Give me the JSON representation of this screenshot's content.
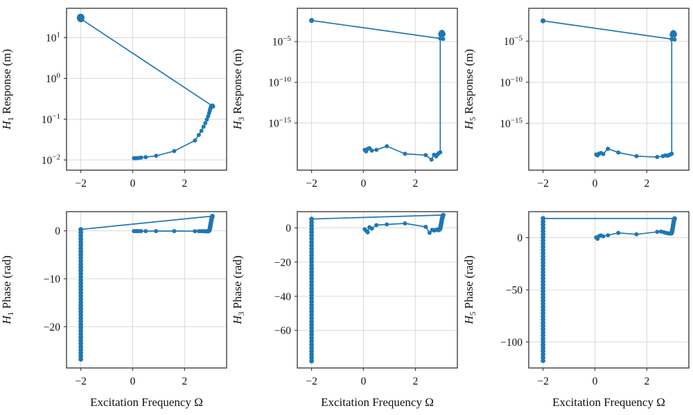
{
  "figure": {
    "background": "#ffffff",
    "line_color": "#1f77b4",
    "grid_color": "#dcdcdc",
    "spine_color": "#3f3f3f",
    "text_color": "#111111",
    "xlabel": "Excitation Frequency Ω"
  },
  "chart_data": [
    {
      "id": "h1_response",
      "type": "line",
      "row": 0,
      "col": 0,
      "ylabel": {
        "var": "H",
        "sub": "1",
        "rest": " Response (m)"
      },
      "yscale": "log",
      "ylim": [
        -2.25,
        1.72
      ],
      "yticks": [
        1,
        0,
        -1,
        -2
      ],
      "xlim": [
        -2.55,
        3.62
      ],
      "xticks": [
        -2,
        0,
        2
      ],
      "grid": true,
      "legend": "none",
      "points": [
        [
          0.05,
          0.011
        ],
        [
          0.1,
          0.011
        ],
        [
          0.16,
          0.0111
        ],
        [
          0.23,
          0.0112
        ],
        [
          0.32,
          0.0114
        ],
        [
          0.5,
          0.0117
        ],
        [
          0.9,
          0.0126
        ],
        [
          1.6,
          0.0165
        ],
        [
          2.4,
          0.03
        ],
        [
          2.55,
          0.041
        ],
        [
          2.65,
          0.052
        ],
        [
          2.73,
          0.065
        ],
        [
          2.8,
          0.08
        ],
        [
          2.86,
          0.098
        ],
        [
          2.91,
          0.118
        ],
        [
          2.945,
          0.14
        ],
        [
          2.97,
          0.16
        ],
        [
          2.99,
          0.178
        ],
        [
          3.005,
          0.192
        ],
        [
          3.02,
          0.202
        ],
        [
          3.04,
          0.21
        ],
        [
          3.06,
          0.215
        ],
        [
          3.08,
          0.216
        ],
        [
          3.1,
          0.205
        ],
        [
          -2.0,
          29.0,
          5
        ],
        [
          -2.02,
          30.5,
          5
        ],
        [
          -1.99,
          31.5,
          5
        ],
        [
          -2.01,
          32.0,
          5
        ],
        [
          -2.0,
          30.8,
          5
        ]
      ]
    },
    {
      "id": "h3_response",
      "type": "line",
      "row": 0,
      "col": 1,
      "ylabel": {
        "var": "H",
        "sub": "3",
        "rest": " Response (m)"
      },
      "yscale": "log",
      "ylim": [
        -20.8,
        -0.9
      ],
      "yticks": [
        -5,
        -10,
        -15
      ],
      "xlim": [
        -2.55,
        3.62
      ],
      "xticks": [
        -2,
        0,
        2
      ],
      "grid": true,
      "legend": "none",
      "points": [
        [
          0.05,
          5e-19
        ],
        [
          0.1,
          3.2e-19
        ],
        [
          0.16,
          6.3e-19
        ],
        [
          0.23,
          8e-19
        ],
        [
          0.32,
          4e-19
        ],
        [
          0.5,
          5e-19
        ],
        [
          0.9,
          1.4e-18
        ],
        [
          1.6,
          1.6e-19
        ],
        [
          2.4,
          1.1e-19
        ],
        [
          2.62,
          3.2e-20
        ],
        [
          2.72,
          1.26e-19
        ],
        [
          2.8,
          8e-20
        ],
        [
          2.86,
          1.4e-19
        ],
        [
          2.91,
          2e-19
        ],
        [
          2.96,
          2.5e-19
        ],
        [
          2.96,
          2.4e-05
        ],
        [
          2.985,
          8e-05,
          4
        ],
        [
          3.005,
          0.00011,
          4
        ],
        [
          3.025,
          0.00013,
          4
        ],
        [
          3.045,
          0.000105,
          4
        ],
        [
          3.01,
          0.00012,
          4
        ],
        [
          3.06,
          8.5e-05,
          4
        ],
        [
          3.07,
          2.2e-05
        ],
        [
          -2.0,
          0.004,
          3.6
        ]
      ]
    },
    {
      "id": "h5_response",
      "type": "line",
      "row": 0,
      "col": 2,
      "ylabel": {
        "var": "H",
        "sub": "5",
        "rest": " Response (m)"
      },
      "yscale": "log",
      "ylim": [
        -20.7,
        -1.0
      ],
      "yticks": [
        -5,
        -10,
        -15
      ],
      "xlim": [
        -2.55,
        3.62
      ],
      "xticks": [
        -2,
        0,
        2
      ],
      "grid": true,
      "legend": "none",
      "points": [
        [
          0.05,
          1.6e-19
        ],
        [
          0.1,
          1.26e-19
        ],
        [
          0.16,
          2e-19
        ],
        [
          0.23,
          2.5e-19
        ],
        [
          0.32,
          1.8e-19
        ],
        [
          0.5,
          8e-19
        ],
        [
          0.9,
          2.8e-19
        ],
        [
          1.6,
          1e-19
        ],
        [
          2.4,
          8e-20
        ],
        [
          2.62,
          1e-19
        ],
        [
          2.72,
          1.26e-19
        ],
        [
          2.8,
          1.1e-19
        ],
        [
          2.86,
          1.4e-19
        ],
        [
          2.91,
          1.6e-19
        ],
        [
          2.96,
          2e-19
        ],
        [
          2.96,
          1.7e-05
        ],
        [
          2.985,
          6e-05,
          4
        ],
        [
          3.005,
          9e-05,
          4
        ],
        [
          3.025,
          0.000105,
          4
        ],
        [
          3.045,
          8.5e-05,
          4
        ],
        [
          3.01,
          9.5e-05,
          4
        ],
        [
          3.06,
          6.5e-05,
          4
        ],
        [
          3.07,
          1.6e-05
        ],
        [
          -2.0,
          0.003,
          3.6
        ]
      ]
    },
    {
      "id": "h1_phase",
      "type": "line",
      "row": 1,
      "col": 0,
      "ylabel": {
        "var": "H",
        "sub": "1",
        "rest": " Phase (rad)"
      },
      "xlabel": "Excitation Frequency Ω",
      "yscale": "linear",
      "ylim": [
        -28.6,
        4.0
      ],
      "yticks": [
        0,
        -10,
        -20
      ],
      "xlim": [
        -2.55,
        3.62
      ],
      "xticks": [
        -2,
        0,
        2
      ],
      "grid": true,
      "legend": "none",
      "points": [
        [
          0.05,
          -0.05
        ],
        [
          0.1,
          -0.05
        ],
        [
          0.16,
          -0.05
        ],
        [
          0.23,
          -0.05
        ],
        [
          0.32,
          -0.05
        ],
        [
          0.5,
          -0.05
        ],
        [
          0.9,
          -0.06
        ],
        [
          1.6,
          -0.06
        ],
        [
          2.4,
          -0.07
        ],
        [
          2.55,
          -0.07
        ],
        [
          2.65,
          -0.08
        ],
        [
          2.73,
          -0.08
        ],
        [
          2.8,
          -0.09
        ],
        [
          2.84,
          -0.09
        ],
        [
          2.87,
          -0.1
        ],
        [
          2.9,
          -0.1
        ],
        [
          2.92,
          -0.08
        ],
        [
          2.94,
          -0.05
        ],
        [
          2.955,
          0.1,
          3.3
        ],
        [
          2.965,
          0.3,
          3.3
        ],
        [
          2.975,
          0.55,
          3.3
        ],
        [
          2.985,
          0.8,
          3.3
        ],
        [
          2.995,
          1.1,
          3.3
        ],
        [
          3.005,
          1.4,
          3.3
        ],
        [
          3.015,
          1.7,
          3.3
        ],
        [
          3.025,
          2.0,
          3.3
        ],
        [
          3.035,
          2.3,
          3.3
        ],
        [
          3.045,
          2.55,
          3.3
        ],
        [
          3.055,
          2.78,
          3.3
        ],
        [
          3.065,
          2.95,
          3.3
        ],
        [
          3.075,
          3.08,
          3.3
        ],
        [
          -2.0,
          0.3
        ]
      ],
      "column": {
        "x": -2.0,
        "y_from": 0.3,
        "y_to": -26.8,
        "count": 42,
        "r": 3.4
      }
    },
    {
      "id": "h3_phase",
      "type": "line",
      "row": 1,
      "col": 1,
      "ylabel": {
        "var": "H",
        "sub": "3",
        "rest": " Phase (rad)"
      },
      "xlabel": "Excitation Frequency Ω",
      "yscale": "linear",
      "ylim": [
        -82,
        9.5
      ],
      "yticks": [
        0,
        -20,
        -40,
        -60
      ],
      "xlim": [
        -2.55,
        3.62
      ],
      "xticks": [
        -2,
        0,
        2
      ],
      "grid": true,
      "legend": "none",
      "points": [
        [
          0.05,
          -0.8
        ],
        [
          0.1,
          -1.6
        ],
        [
          0.16,
          -2.6
        ],
        [
          0.23,
          0.4
        ],
        [
          0.32,
          -0.4
        ],
        [
          0.5,
          1.6
        ],
        [
          0.9,
          2.0
        ],
        [
          1.6,
          2.6
        ],
        [
          2.4,
          0.6
        ],
        [
          2.55,
          -2.9
        ],
        [
          2.65,
          -1.2
        ],
        [
          2.73,
          -1.6
        ],
        [
          2.8,
          -1.1
        ],
        [
          2.86,
          -0.9
        ],
        [
          2.9,
          -1.4
        ],
        [
          2.92,
          -1.2
        ],
        [
          2.94,
          -1.0
        ],
        [
          2.955,
          -0.5,
          3.3
        ],
        [
          2.965,
          0.2,
          3.3
        ],
        [
          2.975,
          0.9,
          3.3
        ],
        [
          2.985,
          1.7,
          3.3
        ],
        [
          2.995,
          2.5,
          3.3
        ],
        [
          3.005,
          3.3,
          3.3
        ],
        [
          3.015,
          4.1,
          3.3
        ],
        [
          3.025,
          4.9,
          3.3
        ],
        [
          3.035,
          5.6,
          3.3
        ],
        [
          3.045,
          6.3,
          3.3
        ],
        [
          3.055,
          6.8,
          3.3
        ],
        [
          3.065,
          7.2,
          3.3
        ],
        [
          3.075,
          7.5,
          3.3
        ],
        [
          -2.0,
          5.2
        ]
      ],
      "column": {
        "x": -2.0,
        "y_from": 5.2,
        "y_to": -78.0,
        "count": 44,
        "r": 3.4
      }
    },
    {
      "id": "h5_phase",
      "type": "line",
      "row": 1,
      "col": 2,
      "ylabel": {
        "var": "H",
        "sub": "5",
        "rest": " Phase (rad)"
      },
      "xlabel": "Excitation Frequency Ω",
      "yscale": "linear",
      "ylim": [
        -125,
        25
      ],
      "yticks": [
        0,
        -50,
        -100
      ],
      "xlim": [
        -2.55,
        3.62
      ],
      "xticks": [
        -2,
        0,
        2
      ],
      "grid": true,
      "legend": "none",
      "points": [
        [
          0.05,
          0.3
        ],
        [
          0.1,
          -1.0
        ],
        [
          0.16,
          1.6
        ],
        [
          0.23,
          2.2
        ],
        [
          0.32,
          1.4
        ],
        [
          0.5,
          2.4
        ],
        [
          0.9,
          4.6
        ],
        [
          1.6,
          3.2
        ],
        [
          2.4,
          5.6
        ],
        [
          2.55,
          5.9
        ],
        [
          2.65,
          5.3
        ],
        [
          2.73,
          4.7
        ],
        [
          2.8,
          4.3
        ],
        [
          2.86,
          4.1
        ],
        [
          2.9,
          4.0
        ],
        [
          2.92,
          4.0
        ],
        [
          2.94,
          4.1
        ],
        [
          2.955,
          4.4,
          3.3
        ],
        [
          2.965,
          5.2,
          3.3
        ],
        [
          2.975,
          6.3,
          3.3
        ],
        [
          2.985,
          7.6,
          3.3
        ],
        [
          2.995,
          9.0,
          3.3
        ],
        [
          3.005,
          10.5,
          3.3
        ],
        [
          3.015,
          12.0,
          3.3
        ],
        [
          3.025,
          13.5,
          3.3
        ],
        [
          3.035,
          15.0,
          3.3
        ],
        [
          3.045,
          16.3,
          3.3
        ],
        [
          3.055,
          17.3,
          3.3
        ],
        [
          3.065,
          18.0,
          3.3
        ],
        [
          3.075,
          18.4,
          3.3
        ],
        [
          -2.0,
          18.5
        ]
      ],
      "column": {
        "x": -2.0,
        "y_from": 18.5,
        "y_to": -118.0,
        "count": 46,
        "r": 3.4
      }
    }
  ]
}
